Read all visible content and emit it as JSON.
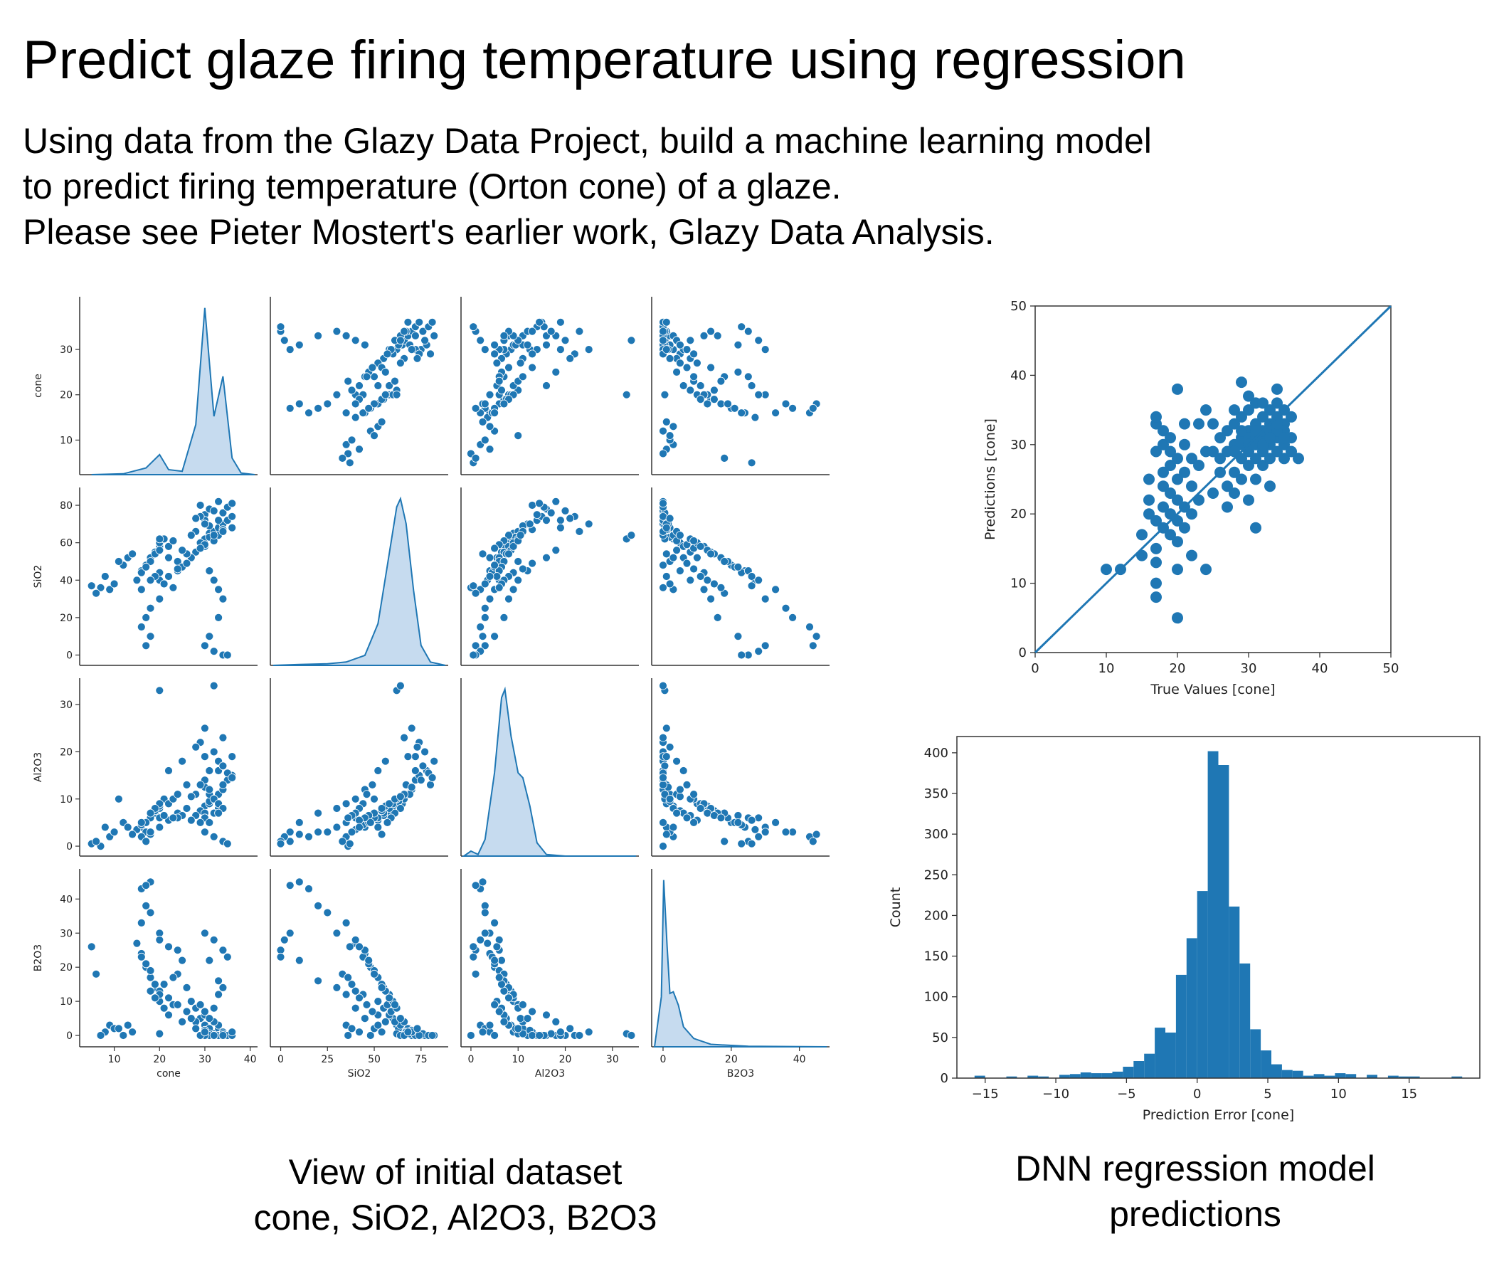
{
  "slide": {
    "title": "Predict glaze firing temperature using regression",
    "description": [
      "Using data from the Glazy Data Project, build a machine learning model",
      "to predict firing temperature (Orton cone) of a glaze.",
      "Please see Pieter Mostert's earlier work, Glazy Data Analysis."
    ],
    "caption_left": [
      "View of initial dataset",
      "cone, SiO2, Al2O3, B2O3"
    ],
    "caption_right": [
      "DNN regression model",
      "predictions"
    ]
  },
  "colors": {
    "series": "#1f77b4",
    "kde_fill": "#c6dbef",
    "axis": "#333333"
  },
  "chart_data": [
    {
      "type": "scatter",
      "subtype": "pairplot",
      "variables": [
        "cone",
        "SiO2",
        "Al2O3",
        "B2O3"
      ],
      "variable_labels": [
        "cone",
        "SiO2",
        "Al2O3",
        "B2O3"
      ],
      "ranges": {
        "cone": [
          3,
          41
        ],
        "SiO2": [
          -4,
          88
        ],
        "Al2O3": [
          -1.5,
          35
        ],
        "B2O3": [
          -2.5,
          48
        ]
      },
      "ticks": {
        "cone": [
          10,
          20,
          30,
          40
        ],
        "SiO2": [
          0,
          25,
          50,
          75
        ],
        "Al2O3": [
          0,
          10,
          20,
          30
        ],
        "B2O3": [
          0,
          20,
          40
        ]
      },
      "ytick_overrides": {
        "cone": [
          10,
          20,
          30
        ],
        "SiO2": [
          0,
          20,
          40,
          60,
          80
        ],
        "Al2O3": [
          0,
          10,
          20,
          30
        ],
        "B2O3": [
          0,
          10,
          20,
          30,
          40
        ]
      },
      "diagonal": "kde",
      "kde_peaks": {
        "cone": [
          [
            5,
            0.0
          ],
          [
            12,
            0.005
          ],
          [
            17,
            0.04
          ],
          [
            20,
            0.12
          ],
          [
            22,
            0.03
          ],
          [
            25,
            0.02
          ],
          [
            28,
            0.3
          ],
          [
            30,
            1.0
          ],
          [
            32,
            0.35
          ],
          [
            34,
            0.59
          ],
          [
            36,
            0.1
          ],
          [
            38,
            0.01
          ],
          [
            41,
            0.0
          ]
        ],
        "SiO2": [
          [
            -4,
            0.0
          ],
          [
            10,
            0.005
          ],
          [
            25,
            0.01
          ],
          [
            35,
            0.02
          ],
          [
            45,
            0.06
          ],
          [
            52,
            0.25
          ],
          [
            57,
            0.6
          ],
          [
            62,
            0.95
          ],
          [
            64,
            1.0
          ],
          [
            67,
            0.85
          ],
          [
            71,
            0.45
          ],
          [
            75,
            0.12
          ],
          [
            80,
            0.02
          ],
          [
            88,
            0.0
          ]
        ],
        "Al2O3": [
          [
            -1.5,
            0.0
          ],
          [
            0,
            0.03
          ],
          [
            1.5,
            0.01
          ],
          [
            3,
            0.1
          ],
          [
            5,
            0.5
          ],
          [
            6.5,
            0.95
          ],
          [
            7.2,
            1.0
          ],
          [
            8.5,
            0.72
          ],
          [
            10,
            0.5
          ],
          [
            11,
            0.47
          ],
          [
            12.5,
            0.3
          ],
          [
            14,
            0.08
          ],
          [
            16,
            0.01
          ],
          [
            20,
            0.0
          ],
          [
            35,
            0.0
          ]
        ],
        "B2O3": [
          [
            -2.5,
            0.0
          ],
          [
            -0.5,
            0.3
          ],
          [
            0.2,
            1.0
          ],
          [
            1.2,
            0.6
          ],
          [
            2,
            0.32
          ],
          [
            3,
            0.33
          ],
          [
            4.5,
            0.25
          ],
          [
            6,
            0.12
          ],
          [
            9,
            0.05
          ],
          [
            14,
            0.015
          ],
          [
            25,
            0.003
          ],
          [
            48,
            0.0
          ]
        ]
      },
      "sample_points": [
        [
          30,
          62,
          8.5,
          3
        ],
        [
          31,
          65,
          9,
          1
        ],
        [
          29,
          60,
          7.5,
          5
        ],
        [
          32,
          66,
          10,
          0.5
        ],
        [
          33,
          68,
          11,
          2
        ],
        [
          34,
          70,
          12,
          0
        ],
        [
          30,
          58,
          7,
          6
        ],
        [
          31,
          63,
          9.5,
          2
        ],
        [
          28,
          55,
          6.5,
          8
        ],
        [
          27,
          52,
          5.5,
          10
        ],
        [
          35,
          72,
          14,
          0
        ],
        [
          36,
          74,
          15,
          0
        ],
        [
          34,
          67,
          13,
          1
        ],
        [
          33,
          64,
          8,
          3
        ],
        [
          32,
          61,
          7,
          4
        ],
        [
          30,
          59,
          6,
          7
        ],
        [
          29,
          57,
          5,
          9
        ],
        [
          31,
          69,
          11,
          0.5
        ],
        [
          30,
          70,
          12.5,
          1.5
        ],
        [
          33,
          72,
          16,
          0
        ],
        [
          20,
          58,
          8,
          12
        ],
        [
          19,
          55,
          7,
          14
        ],
        [
          18,
          52,
          6,
          17
        ],
        [
          20,
          60,
          9,
          10
        ],
        [
          21,
          62,
          10,
          8
        ],
        [
          17,
          48,
          5,
          20
        ],
        [
          16,
          45,
          4,
          24
        ],
        [
          18,
          50,
          6,
          19
        ],
        [
          19,
          54,
          7.5,
          15
        ],
        [
          20,
          56,
          8.5,
          13
        ],
        [
          22,
          58,
          9,
          11
        ],
        [
          23,
          61,
          10,
          9
        ],
        [
          15,
          40,
          3.5,
          27
        ],
        [
          16,
          44,
          4.5,
          23
        ],
        [
          17,
          47,
          5,
          21
        ],
        [
          20,
          30,
          4,
          30
        ],
        [
          17,
          20,
          3,
          38
        ],
        [
          16,
          15,
          2,
          43
        ],
        [
          18,
          10,
          2.5,
          45
        ],
        [
          17,
          5,
          1,
          44
        ],
        [
          16,
          35,
          5,
          33
        ],
        [
          18,
          25,
          3,
          36
        ],
        [
          20,
          40,
          6,
          28
        ],
        [
          24,
          50,
          7,
          18
        ],
        [
          26,
          54,
          8,
          14
        ],
        [
          25,
          47,
          6.5,
          22
        ],
        [
          24,
          45,
          6,
          25
        ],
        [
          22,
          42,
          5.5,
          26
        ],
        [
          28,
          66,
          11,
          4
        ],
        [
          27,
          64,
          10.5,
          5
        ],
        [
          30,
          75,
          14,
          0
        ],
        [
          31,
          78,
          16,
          0
        ],
        [
          29,
          80,
          13,
          0
        ],
        [
          33,
          82,
          18,
          0
        ],
        [
          32,
          77,
          20,
          0
        ],
        [
          34,
          76,
          17,
          0.5
        ],
        [
          35,
          79,
          15.5,
          0
        ],
        [
          36,
          81,
          14.5,
          0
        ],
        [
          30,
          72,
          19,
          0
        ],
        [
          29,
          74,
          22,
          0
        ],
        [
          31,
          45,
          12,
          5
        ],
        [
          32,
          40,
          10,
          8
        ],
        [
          33,
          35,
          9,
          12
        ],
        [
          34,
          30,
          8,
          14
        ],
        [
          33,
          20,
          7,
          16
        ],
        [
          31,
          10,
          5,
          22
        ],
        [
          30,
          5,
          3,
          30
        ],
        [
          32,
          2,
          2,
          28
        ],
        [
          34,
          0,
          1,
          25
        ],
        [
          35,
          0,
          0.5,
          23
        ],
        [
          9,
          35,
          2,
          3
        ],
        [
          10,
          38,
          3,
          2
        ],
        [
          8,
          42,
          4,
          1
        ],
        [
          12,
          48,
          5,
          0
        ],
        [
          11,
          50,
          10,
          2
        ],
        [
          13,
          52,
          4,
          3
        ],
        [
          7,
          36,
          0,
          0
        ],
        [
          5,
          37,
          0.5,
          26
        ],
        [
          6,
          33,
          1,
          18
        ],
        [
          14,
          54,
          2.5,
          1
        ],
        [
          20,
          62,
          33,
          0.5
        ],
        [
          32,
          64,
          34,
          0
        ],
        [
          30,
          70,
          25,
          1
        ],
        [
          34,
          66,
          23,
          0
        ],
        [
          28,
          73,
          21,
          2
        ],
        [
          36,
          68,
          19,
          1
        ],
        [
          25,
          56,
          18,
          4
        ],
        [
          22,
          52,
          16,
          6
        ],
        [
          26,
          49,
          13,
          7
        ],
        [
          24,
          46,
          11,
          9
        ],
        [
          20,
          44,
          9,
          12
        ],
        [
          19,
          42,
          8,
          11
        ],
        [
          18,
          40,
          7,
          13
        ],
        [
          21,
          38,
          6.5,
          15
        ],
        [
          23,
          36,
          6,
          17
        ]
      ]
    },
    {
      "type": "scatter",
      "xlabel": "True Values [cone]",
      "ylabel": "Predictions [cone]",
      "xlim": [
        0,
        50
      ],
      "ylim": [
        0,
        50
      ],
      "xticks": [
        0,
        10,
        20,
        30,
        40,
        50
      ],
      "yticks": [
        0,
        10,
        20,
        30,
        40,
        50
      ],
      "reference_line": [
        [
          0,
          0
        ],
        [
          50,
          50
        ]
      ],
      "points": [
        [
          10,
          12
        ],
        [
          12,
          12
        ],
        [
          15,
          14
        ],
        [
          15,
          17
        ],
        [
          16,
          20
        ],
        [
          16,
          22
        ],
        [
          16,
          25
        ],
        [
          17,
          19
        ],
        [
          17,
          29
        ],
        [
          17,
          33
        ],
        [
          17,
          34
        ],
        [
          17,
          15
        ],
        [
          17,
          13
        ],
        [
          17,
          10
        ],
        [
          17,
          8
        ],
        [
          18,
          18
        ],
        [
          18,
          21
        ],
        [
          18,
          24
        ],
        [
          18,
          26
        ],
        [
          18,
          30
        ],
        [
          18,
          32
        ],
        [
          19,
          17
        ],
        [
          19,
          20
        ],
        [
          19,
          23
        ],
        [
          19,
          27
        ],
        [
          19,
          29
        ],
        [
          19,
          31
        ],
        [
          20,
          16
        ],
        [
          20,
          19
        ],
        [
          20,
          22
        ],
        [
          20,
          25
        ],
        [
          20,
          28
        ],
        [
          20,
          38
        ],
        [
          20,
          12
        ],
        [
          20,
          5
        ],
        [
          21,
          18
        ],
        [
          21,
          21
        ],
        [
          21,
          26
        ],
        [
          21,
          30
        ],
        [
          21,
          33
        ],
        [
          22,
          20
        ],
        [
          22,
          24
        ],
        [
          22,
          28
        ],
        [
          22,
          14
        ],
        [
          23,
          27
        ],
        [
          23,
          22
        ],
        [
          23,
          33
        ],
        [
          24,
          29
        ],
        [
          24,
          35
        ],
        [
          24,
          12
        ],
        [
          25,
          23
        ],
        [
          25,
          29
        ],
        [
          25,
          33
        ],
        [
          26,
          28
        ],
        [
          26,
          31
        ],
        [
          26,
          26
        ],
        [
          27,
          29
        ],
        [
          27,
          32
        ],
        [
          27,
          24
        ],
        [
          27,
          21
        ],
        [
          28,
          30
        ],
        [
          28,
          33
        ],
        [
          28,
          26
        ],
        [
          28,
          23
        ],
        [
          28,
          35
        ],
        [
          29,
          28
        ],
        [
          29,
          31
        ],
        [
          29,
          34
        ],
        [
          29,
          39
        ],
        [
          29,
          25
        ],
        [
          30,
          29
        ],
        [
          30,
          32
        ],
        [
          30,
          35
        ],
        [
          30,
          27
        ],
        [
          30,
          22
        ],
        [
          30,
          37
        ],
        [
          31,
          30
        ],
        [
          31,
          33
        ],
        [
          31,
          28
        ],
        [
          31,
          36
        ],
        [
          31,
          18
        ],
        [
          31,
          25
        ],
        [
          32,
          31
        ],
        [
          32,
          34
        ],
        [
          32,
          29
        ],
        [
          32,
          36
        ],
        [
          32,
          27
        ],
        [
          33,
          30
        ],
        [
          33,
          33
        ],
        [
          33,
          35
        ],
        [
          33,
          28
        ],
        [
          33,
          24
        ],
        [
          34,
          31
        ],
        [
          34,
          34
        ],
        [
          34,
          29
        ],
        [
          34,
          36
        ],
        [
          34,
          38
        ],
        [
          35,
          30
        ],
        [
          35,
          33
        ],
        [
          35,
          35
        ],
        [
          35,
          28
        ],
        [
          35,
          32
        ],
        [
          36,
          31
        ],
        [
          36,
          34
        ],
        [
          37,
          28
        ],
        [
          36,
          29
        ],
        [
          29,
          30
        ],
        [
          30,
          31
        ],
        [
          31,
          31
        ],
        [
          32,
          32
        ],
        [
          33,
          32
        ],
        [
          34,
          32
        ],
        [
          30,
          30
        ],
        [
          31,
          32
        ],
        [
          32,
          30
        ],
        [
          33,
          31
        ],
        [
          28,
          29
        ],
        [
          29,
          32
        ],
        [
          34,
          33
        ],
        [
          35,
          31
        ]
      ]
    },
    {
      "type": "bar",
      "subtype": "histogram",
      "xlabel": "Prediction Error [cone]",
      "ylabel": "Count",
      "xlim": [
        -17,
        20
      ],
      "ylim": [
        0,
        420
      ],
      "xticks": [
        -15,
        -10,
        -5,
        0,
        5,
        10,
        15
      ],
      "yticks": [
        0,
        50,
        100,
        150,
        200,
        250,
        300,
        350,
        400
      ],
      "bin_start": -15.75,
      "bin_width": 0.75,
      "values": [
        3,
        0,
        0,
        2,
        0,
        3,
        2,
        0,
        4,
        5,
        7,
        6,
        6,
        8,
        14,
        21,
        30,
        62,
        56,
        127,
        172,
        230,
        402,
        385,
        211,
        141,
        60,
        34,
        17,
        10,
        9,
        3,
        5,
        3,
        6,
        5,
        0,
        4,
        0,
        3,
        2,
        2,
        0,
        0,
        0,
        2,
        0,
        0
      ]
    }
  ]
}
